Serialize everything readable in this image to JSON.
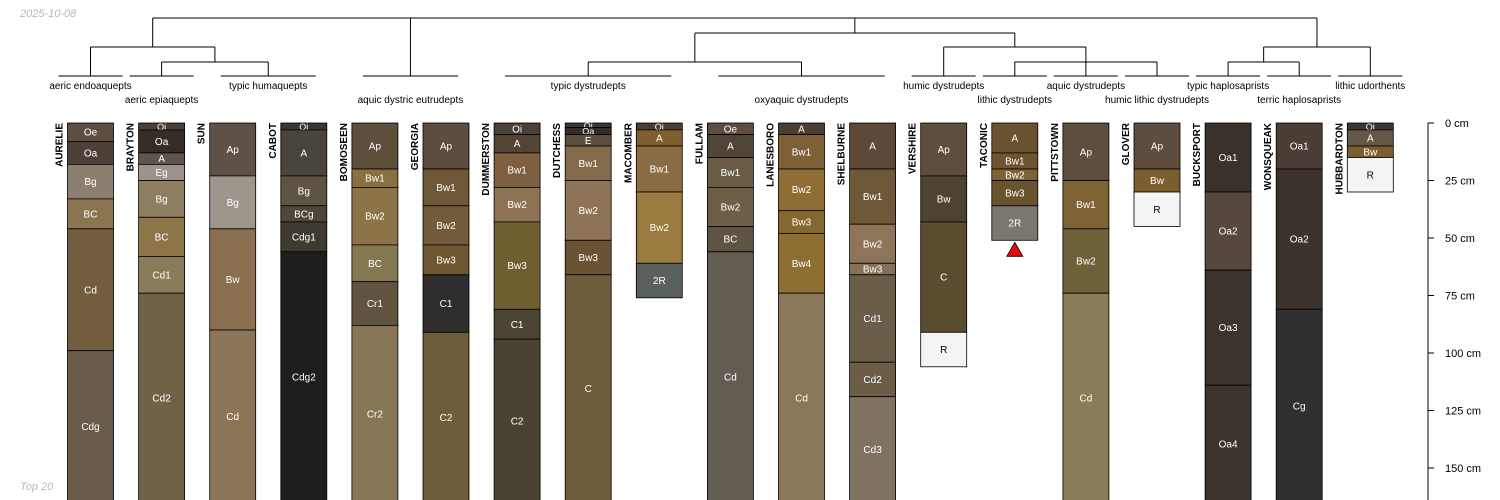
{
  "date": "2025-10-08",
  "footer": "Top 20",
  "depth_axis": {
    "unit": "cm",
    "ticks": [
      {
        "value": 0,
        "label": "0 cm"
      },
      {
        "value": 25,
        "label": "25 cm"
      },
      {
        "value": 50,
        "label": "50 cm"
      },
      {
        "value": 75,
        "label": "75 cm"
      },
      {
        "value": 100,
        "label": "100 cm"
      },
      {
        "value": 125,
        "label": "125 cm"
      },
      {
        "value": 150,
        "label": "150 cm"
      }
    ]
  },
  "taxa": [
    {
      "name": "aeric endoaquepts",
      "members": [
        "AURELIE"
      ]
    },
    {
      "name": "aeric epiaquepts",
      "members": [
        "BRAYTON"
      ]
    },
    {
      "name": "typic humaquepts",
      "members": [
        "SUN",
        "CABOT"
      ]
    },
    {
      "name": "aquic dystric eutrudepts",
      "members": [
        "BOMOSEEN",
        "GEORGIA"
      ]
    },
    {
      "name": "typic dystrudepts",
      "members": [
        "DUMMERSTON",
        "DUTCHESS",
        "MACOMBER"
      ]
    },
    {
      "name": "oxyaquic dystrudepts",
      "members": [
        "FULLAM",
        "LANESBORO",
        "SHELBURNE"
      ]
    },
    {
      "name": "humic dystrudepts",
      "members": [
        "VERSHIRE"
      ]
    },
    {
      "name": "lithic dystrudepts",
      "members": [
        "TACONIC"
      ]
    },
    {
      "name": "aquic dystrudepts",
      "members": [
        "PITTSTOWN"
      ]
    },
    {
      "name": "humic lithic dystrudepts",
      "members": [
        "GLOVER"
      ]
    },
    {
      "name": "typic haplosaprists",
      "members": [
        "BUCKSPORT"
      ]
    },
    {
      "name": "terric haplosaprists",
      "members": [
        "WONSQUEAK"
      ]
    },
    {
      "name": "lithic udorthents",
      "members": [
        "HUBBARDTON"
      ]
    }
  ],
  "profiles": [
    {
      "name": "AURELIE",
      "horizons": [
        {
          "name": "Oe",
          "top": 0,
          "bottom": 8,
          "color": "#5e4e42"
        },
        {
          "name": "Oa",
          "top": 8,
          "bottom": 18,
          "color": "#4c4038"
        },
        {
          "name": "Bg",
          "top": 18,
          "bottom": 33,
          "color": "#8b8070"
        },
        {
          "name": "BC",
          "top": 33,
          "bottom": 46,
          "color": "#8a7550"
        },
        {
          "name": "Cd",
          "top": 46,
          "bottom": 99,
          "color": "#725e3e"
        },
        {
          "name": "Cdg",
          "top": 99,
          "bottom": 165,
          "color": "#6a5c4a"
        }
      ]
    },
    {
      "name": "BRAYTON",
      "horizons": [
        {
          "name": "Oi",
          "top": 0,
          "bottom": 3,
          "color": "#4a3f36"
        },
        {
          "name": "Oa",
          "top": 3,
          "bottom": 13,
          "color": "#362d28"
        },
        {
          "name": "A",
          "top": 13,
          "bottom": 18,
          "color": "#5e554f"
        },
        {
          "name": "Eg",
          "top": 18,
          "bottom": 25,
          "color": "#9c948a"
        },
        {
          "name": "Bg",
          "top": 25,
          "bottom": 41,
          "color": "#8e7e62"
        },
        {
          "name": "BC",
          "top": 41,
          "bottom": 58,
          "color": "#8c7548"
        },
        {
          "name": "Cd1",
          "top": 58,
          "bottom": 74,
          "color": "#8a7c5a"
        },
        {
          "name": "Cd2",
          "top": 74,
          "bottom": 165,
          "color": "#706246"
        }
      ]
    },
    {
      "name": "SUN",
      "horizons": [
        {
          "name": "Ap",
          "top": 0,
          "bottom": 23,
          "color": "#5e5248"
        },
        {
          "name": "Bg",
          "top": 23,
          "bottom": 46,
          "color": "#9e958c"
        },
        {
          "name": "Bw",
          "top": 46,
          "bottom": 90,
          "color": "#8a7050"
        },
        {
          "name": "Cd",
          "top": 90,
          "bottom": 165,
          "color": "#8c7458"
        }
      ]
    },
    {
      "name": "CABOT",
      "horizons": [
        {
          "name": "Oi",
          "top": 0,
          "bottom": 3,
          "color": "#3c3632"
        },
        {
          "name": "A",
          "top": 3,
          "bottom": 23,
          "color": "#4a443e"
        },
        {
          "name": "Bg",
          "top": 23,
          "bottom": 36,
          "color": "#5e5444"
        },
        {
          "name": "BCg",
          "top": 36,
          "bottom": 43,
          "color": "#4e4638"
        },
        {
          "name": "Cdg1",
          "top": 43,
          "bottom": 56,
          "color": "#3e3a32"
        },
        {
          "name": "Cdg2",
          "top": 56,
          "bottom": 165,
          "color": "#1e1e1c"
        }
      ]
    },
    {
      "name": "BOMOSEEN",
      "horizons": [
        {
          "name": "Ap",
          "top": 0,
          "bottom": 20,
          "color": "#5e4e3c"
        },
        {
          "name": "Bw1",
          "top": 20,
          "bottom": 28,
          "color": "#8a7040"
        },
        {
          "name": "Bw2",
          "top": 28,
          "bottom": 53,
          "color": "#8c7448"
        },
        {
          "name": "BC",
          "top": 53,
          "bottom": 69,
          "color": "#837850"
        },
        {
          "name": "Cr1",
          "top": 69,
          "bottom": 88,
          "color": "#605440"
        },
        {
          "name": "Cr2",
          "top": 88,
          "bottom": 165,
          "color": "#867656"
        }
      ]
    },
    {
      "name": "GEORGIA",
      "horizons": [
        {
          "name": "Ap",
          "top": 0,
          "bottom": 20,
          "color": "#5e4c3e"
        },
        {
          "name": "Bw1",
          "top": 20,
          "bottom": 36,
          "color": "#6e5838"
        },
        {
          "name": "Bw2",
          "top": 36,
          "bottom": 53,
          "color": "#735c3a"
        },
        {
          "name": "Bw3",
          "top": 53,
          "bottom": 66,
          "color": "#6e5632"
        },
        {
          "name": "C1",
          "top": 66,
          "bottom": 91,
          "color": "#2e2c2c"
        },
        {
          "name": "C2",
          "top": 91,
          "bottom": 165,
          "color": "#6e5c3a"
        }
      ]
    },
    {
      "name": "DUMMERSTON",
      "horizons": [
        {
          "name": "Oi",
          "top": 0,
          "bottom": 5,
          "color": "#4a4038"
        },
        {
          "name": "A",
          "top": 5,
          "bottom": 13,
          "color": "#544436"
        },
        {
          "name": "Bw1",
          "top": 13,
          "bottom": 28,
          "color": "#7e6040"
        },
        {
          "name": "Bw2",
          "top": 28,
          "bottom": 43,
          "color": "#8e7454"
        },
        {
          "name": "Bw3",
          "top": 43,
          "bottom": 81,
          "color": "#6e5e30"
        },
        {
          "name": "C1",
          "top": 81,
          "bottom": 94,
          "color": "#4e4434"
        },
        {
          "name": "C2",
          "top": 94,
          "bottom": 165,
          "color": "#4a4232"
        }
      ]
    },
    {
      "name": "DUTCHESS",
      "horizons": [
        {
          "name": "Oi",
          "top": 0,
          "bottom": 2,
          "color": "#3e3632"
        },
        {
          "name": "Oa",
          "top": 2,
          "bottom": 5,
          "color": "#342c28"
        },
        {
          "name": "E",
          "top": 5,
          "bottom": 10,
          "color": "#5e5040"
        },
        {
          "name": "Bw1",
          "top": 10,
          "bottom": 25,
          "color": "#826a4a"
        },
        {
          "name": "Bw2",
          "top": 25,
          "bottom": 51,
          "color": "#8e7456"
        },
        {
          "name": "Bw3",
          "top": 51,
          "bottom": 66,
          "color": "#6a5234"
        },
        {
          "name": "C",
          "top": 66,
          "bottom": 165,
          "color": "#6e5e3c"
        }
      ]
    },
    {
      "name": "MACOMBER",
      "horizons": [
        {
          "name": "Oi",
          "top": 0,
          "bottom": 3,
          "color": "#4a3e32"
        },
        {
          "name": "A",
          "top": 3,
          "bottom": 10,
          "color": "#7e6030"
        },
        {
          "name": "Bw1",
          "top": 10,
          "bottom": 30,
          "color": "#8a6c44"
        },
        {
          "name": "Bw2",
          "top": 30,
          "bottom": 61,
          "color": "#9a7a3e"
        },
        {
          "name": "2R",
          "top": 61,
          "bottom": 76,
          "color": "#5a605e"
        }
      ]
    },
    {
      "name": "FULLAM",
      "horizons": [
        {
          "name": "Oe",
          "top": 0,
          "bottom": 5,
          "color": "#5e4c3e"
        },
        {
          "name": "A",
          "top": 5,
          "bottom": 15,
          "color": "#4e4438"
        },
        {
          "name": "Bw1",
          "top": 15,
          "bottom": 28,
          "color": "#6a5c44"
        },
        {
          "name": "Bw2",
          "top": 28,
          "bottom": 45,
          "color": "#6e5e48"
        },
        {
          "name": "BC",
          "top": 45,
          "bottom": 56,
          "color": "#5e5444"
        },
        {
          "name": "Cd",
          "top": 56,
          "bottom": 165,
          "color": "#625c52"
        }
      ]
    },
    {
      "name": "LANESBORO",
      "horizons": [
        {
          "name": "A",
          "top": 0,
          "bottom": 5,
          "color": "#4e3e32"
        },
        {
          "name": "Bw1",
          "top": 5,
          "bottom": 20,
          "color": "#7e6038"
        },
        {
          "name": "Bw2",
          "top": 20,
          "bottom": 38,
          "color": "#8e6e34"
        },
        {
          "name": "Bw3",
          "top": 38,
          "bottom": 48,
          "color": "#84682e"
        },
        {
          "name": "Bw4",
          "top": 48,
          "bottom": 74,
          "color": "#8e6e32"
        },
        {
          "name": "Cd",
          "top": 74,
          "bottom": 165,
          "color": "#8a7658"
        }
      ]
    },
    {
      "name": "SHELBURNE",
      "horizons": [
        {
          "name": "A",
          "top": 0,
          "bottom": 20,
          "color": "#5e4838"
        },
        {
          "name": "Bw1",
          "top": 20,
          "bottom": 44,
          "color": "#6e5838"
        },
        {
          "name": "Bw2",
          "top": 44,
          "bottom": 61,
          "color": "#8e7458"
        },
        {
          "name": "Bw3",
          "top": 61,
          "bottom": 66,
          "color": "#86705a"
        },
        {
          "name": "Cd1",
          "top": 66,
          "bottom": 104,
          "color": "#6a5e48"
        },
        {
          "name": "Cd2",
          "top": 104,
          "bottom": 119,
          "color": "#6c5e46"
        },
        {
          "name": "Cd3",
          "top": 119,
          "bottom": 165,
          "color": "#807260"
        }
      ]
    },
    {
      "name": "VERSHIRE",
      "horizons": [
        {
          "name": "Ap",
          "top": 0,
          "bottom": 23,
          "color": "#5e4e3e"
        },
        {
          "name": "Bw",
          "top": 23,
          "bottom": 43,
          "color": "#4e4230"
        },
        {
          "name": "C",
          "top": 43,
          "bottom": 91,
          "color": "#5a4c2e"
        },
        {
          "name": "R",
          "top": 91,
          "bottom": 106,
          "color": "#f4f4f4"
        }
      ]
    },
    {
      "name": "TACONIC",
      "horizons": [
        {
          "name": "A",
          "top": 0,
          "bottom": 13,
          "color": "#6a5230"
        },
        {
          "name": "Bw1",
          "top": 13,
          "bottom": 20,
          "color": "#6e5430"
        },
        {
          "name": "Bw2",
          "top": 20,
          "bottom": 25,
          "color": "#7e6234"
        },
        {
          "name": "Bw3",
          "top": 25,
          "bottom": 36,
          "color": "#6a5430"
        },
        {
          "name": "2R",
          "top": 36,
          "bottom": 51,
          "color": "#7c7670"
        }
      ]
    },
    {
      "name": "PITTSTOWN",
      "horizons": [
        {
          "name": "Ap",
          "top": 0,
          "bottom": 25,
          "color": "#5e4e3e"
        },
        {
          "name": "Bw1",
          "top": 25,
          "bottom": 46,
          "color": "#7e6434"
        },
        {
          "name": "Bw2",
          "top": 46,
          "bottom": 74,
          "color": "#6e6038"
        },
        {
          "name": "Cd",
          "top": 74,
          "bottom": 165,
          "color": "#8a7c56"
        }
      ]
    },
    {
      "name": "GLOVER",
      "horizons": [
        {
          "name": "Ap",
          "top": 0,
          "bottom": 20,
          "color": "#5e4c3e"
        },
        {
          "name": "Bw",
          "top": 20,
          "bottom": 30,
          "color": "#7a5e2e"
        },
        {
          "name": "R",
          "top": 30,
          "bottom": 45,
          "color": "#f4f4f4"
        }
      ]
    },
    {
      "name": "BUCKSPORT",
      "horizons": [
        {
          "name": "Oa1",
          "top": 0,
          "bottom": 30,
          "color": "#3a302c"
        },
        {
          "name": "Oa2",
          "top": 30,
          "bottom": 64,
          "color": "#56483e"
        },
        {
          "name": "Oa3",
          "top": 64,
          "bottom": 114,
          "color": "#3c322e"
        },
        {
          "name": "Oa4",
          "top": 114,
          "bottom": 165,
          "color": "#3c322e"
        }
      ]
    },
    {
      "name": "WONSQUEAK",
      "horizons": [
        {
          "name": "Oa1",
          "top": 0,
          "bottom": 20,
          "color": "#4a3e36"
        },
        {
          "name": "Oa2",
          "top": 20,
          "bottom": 81,
          "color": "#3c322c"
        },
        {
          "name": "Cg",
          "top": 81,
          "bottom": 165,
          "color": "#303030"
        }
      ]
    },
    {
      "name": "HUBBARDTON",
      "horizons": [
        {
          "name": "Oi",
          "top": 0,
          "bottom": 3,
          "color": "#3c3632"
        },
        {
          "name": "A",
          "top": 3,
          "bottom": 10,
          "color": "#665848"
        },
        {
          "name": "Bw",
          "top": 10,
          "bottom": 15,
          "color": "#7a5e2e"
        },
        {
          "name": "R",
          "top": 15,
          "bottom": 30,
          "color": "#f4f4f4"
        }
      ]
    }
  ],
  "markers": [
    {
      "profile": "TACONIC",
      "depth": 51,
      "shape": "triangle",
      "color": "#e01010"
    }
  ]
}
